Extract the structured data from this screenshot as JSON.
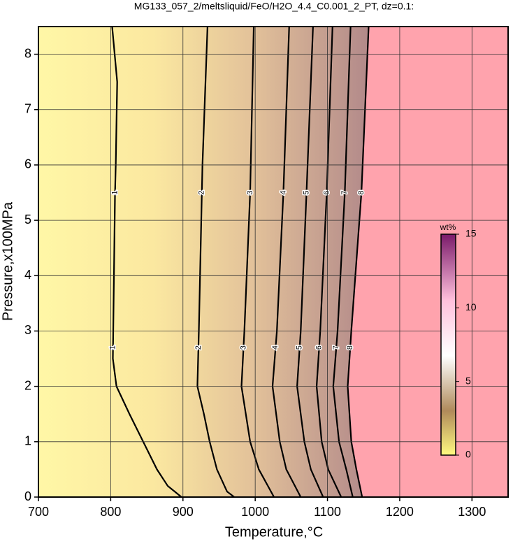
{
  "chart_data": {
    "type": "contour",
    "title": "MG133_057_2/meltsliquid/FeO/H2O_4.4_C0.001_2_PT, dz=0.1:",
    "xlabel": "Temperature,°C",
    "ylabel": "Pressure,x100MPa",
    "xlim": [
      700,
      1350
    ],
    "ylim": [
      0,
      8.5
    ],
    "xticks": [
      700,
      800,
      900,
      1000,
      1100,
      1200,
      1300
    ],
    "yticks": [
      0,
      1,
      2,
      3,
      4,
      5,
      6,
      7,
      8
    ],
    "grid": true,
    "contours": [
      {
        "level": 1,
        "x": [
          898,
          879,
          864,
          845,
          826,
          808,
          803,
          806,
          807,
          809,
          802
        ],
        "y": [
          0,
          0.2,
          0.5,
          1,
          1.5,
          2,
          2.5,
          5.5,
          6,
          7.5,
          8.5
        ]
      },
      {
        "level": 2,
        "x": [
          971,
          961,
          947,
          937,
          929,
          920,
          922,
          927,
          934
        ],
        "y": [
          0,
          0.1,
          0.5,
          1,
          1.5,
          2,
          3,
          6,
          8.5
        ]
      },
      {
        "level": 3,
        "x": [
          1026,
          1005,
          993,
          981,
          985,
          993,
          998
        ],
        "y": [
          0,
          0.5,
          1,
          2,
          3,
          5.5,
          8.5
        ]
      },
      {
        "level": 4,
        "x": [
          1063,
          1043,
          1034,
          1024,
          1030,
          1039,
          1047
        ],
        "y": [
          0,
          0.5,
          1,
          2,
          3,
          5.5,
          8.5
        ]
      },
      {
        "level": 5,
        "x": [
          1094,
          1077,
          1068,
          1058,
          1063,
          1071,
          1080
        ],
        "y": [
          0,
          0.5,
          1,
          2,
          3,
          5.5,
          8.5
        ]
      },
      {
        "level": 6,
        "x": [
          1119,
          1101,
          1092,
          1085,
          1090,
          1099,
          1107
        ],
        "y": [
          0,
          0.5,
          1,
          2,
          3,
          5.5,
          8.5
        ]
      },
      {
        "level": 7,
        "x": [
          1135,
          1126,
          1116,
          1108,
          1114,
          1124,
          1132
        ],
        "y": [
          0,
          0.5,
          1,
          2,
          3,
          5.5,
          8.5
        ]
      },
      {
        "level": 8,
        "x": [
          1148,
          1140,
          1133,
          1128,
          1133,
          1147,
          1157
        ],
        "y": [
          0,
          0.5,
          1,
          2,
          3,
          5.5,
          8.5
        ]
      }
    ],
    "colorbar": {
      "label": "wt%",
      "lim": [
        0,
        15
      ],
      "ticks": [
        0,
        5,
        10,
        15
      ]
    }
  }
}
